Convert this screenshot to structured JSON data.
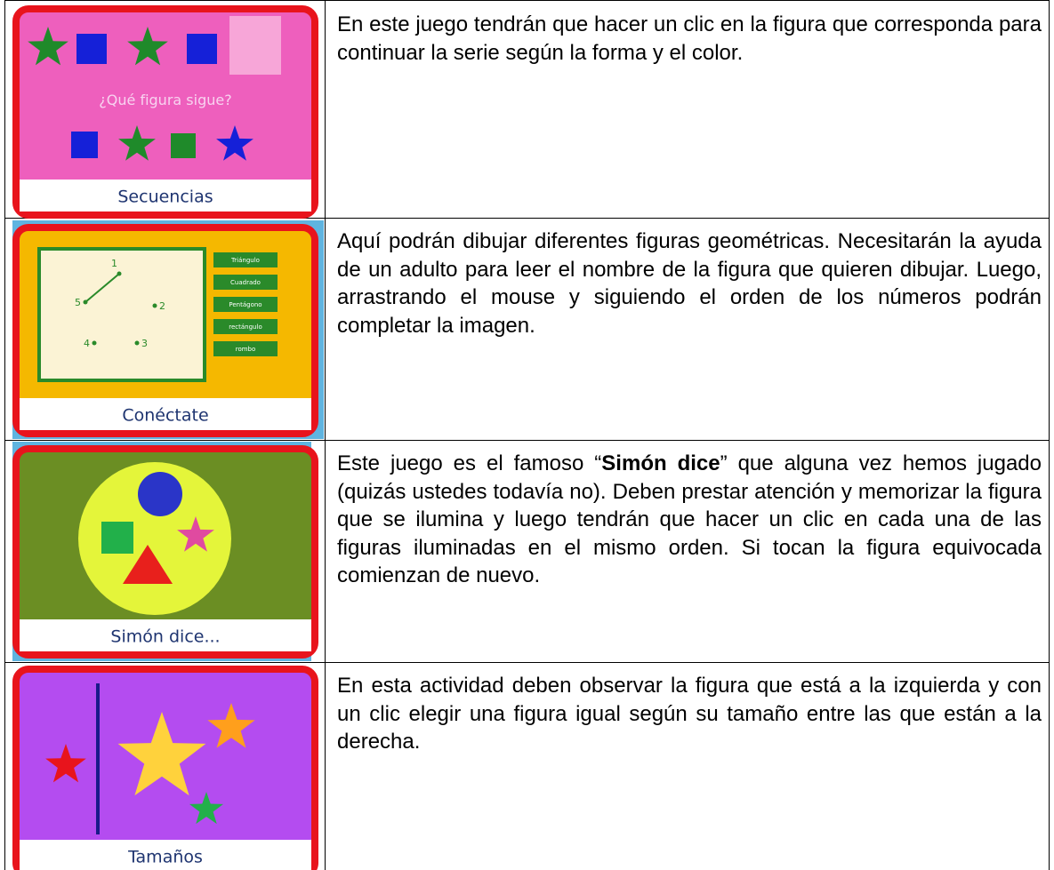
{
  "rows": [
    {
      "game": {
        "prompt": "¿Qué figura sigue?",
        "title": "Secuencias"
      },
      "description": "En este juego tendrán que hacer un clic en la figura que corresponda para continuar la serie según la forma y el color."
    },
    {
      "game": {
        "points": [
          "1",
          "5",
          "2",
          "4",
          "3"
        ],
        "buttons": [
          "Triángulo",
          "Cuadrado",
          "Pentágono",
          "rectángulo",
          "rombo"
        ],
        "title": "Conéctate"
      },
      "description": "Aquí podrán dibujar diferentes figuras geométricas. Necesitarán la ayuda de un adulto para leer el nombre de la figura que quieren dibujar.  Luego, arrastrando el mouse y siguiendo el orden de los números podrán completar la imagen."
    },
    {
      "game": {
        "title": "Simón dice..."
      },
      "description": [
        "Este juego es el famoso “",
        "Simón dice",
        "” que alguna vez hemos jugado (quizás ustedes todavía no).  Deben prestar atención y memorizar la figura que se ilumina y luego tendrán que hacer un clic en cada una de las figuras iluminadas en el mismo orden.  Si tocan la figura equivocada comienzan de nuevo."
      ]
    },
    {
      "game": {
        "title": "Tamaños"
      },
      "description": "En esta actividad deben observar la figura que está a la izquierda y con un clic elegir una figura igual según su tamaño entre las que están a la derecha."
    }
  ]
}
